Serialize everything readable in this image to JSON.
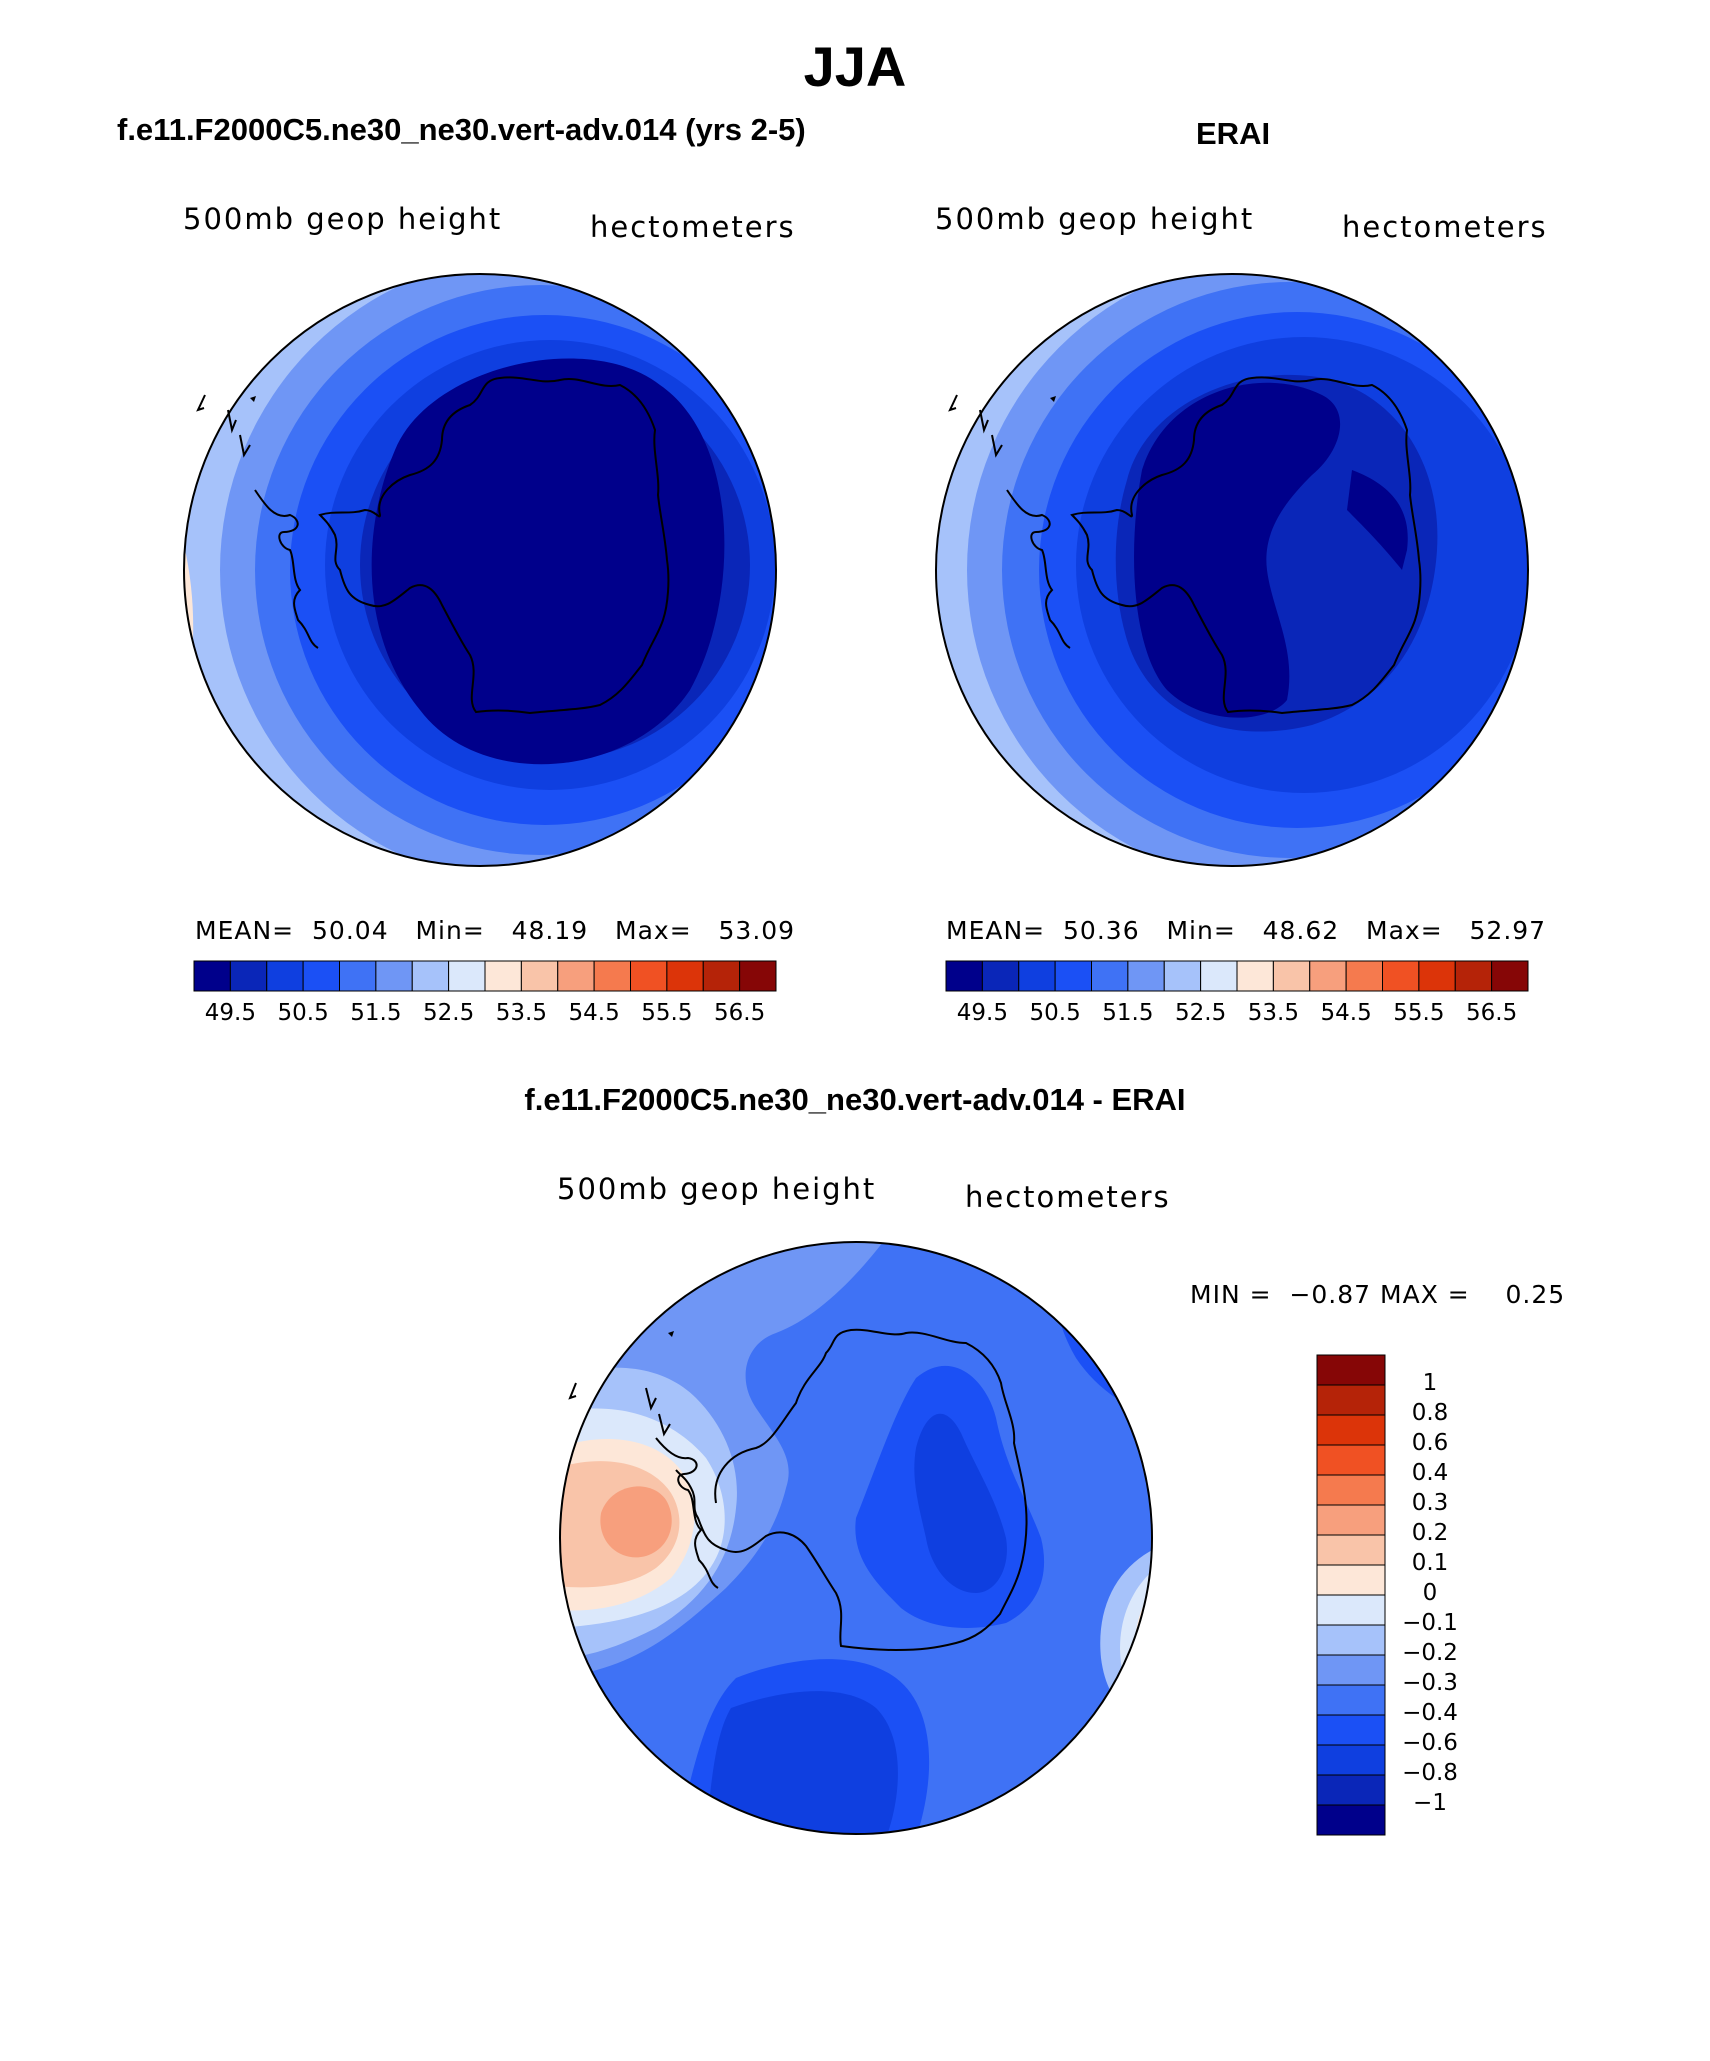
{
  "title": "JJA",
  "panels": [
    {
      "id": "model",
      "title": "f.e11.F2000C5.ne30_ne30.vert-adv.014 (yrs 2-5)",
      "left_label": "500mb  geop  height",
      "right_label": "hectometers",
      "stats": {
        "mean_label": "MEAN=",
        "mean": "50.04",
        "min_label": "Min=",
        "min": "48.19",
        "max_label": "Max=",
        "max": "53.09"
      }
    },
    {
      "id": "obs",
      "title": "ERAI",
      "left_label": "500mb  geop  height",
      "right_label": "hectometers",
      "stats": {
        "mean_label": "MEAN=",
        "mean": "50.36",
        "min_label": "Min=",
        "min": "48.62",
        "max_label": "Max=",
        "max": "52.97"
      }
    }
  ],
  "colorbar": {
    "colors": [
      "#00008b",
      "#0a26b8",
      "#0f3fe0",
      "#1b50f5",
      "#3f72f5",
      "#6f96f5",
      "#a6c2fa",
      "#dbe8fb",
      "#fde7d8",
      "#f9c4a9",
      "#f79f7d",
      "#f57a4e",
      "#f05123",
      "#dc3409",
      "#b52308",
      "#860606"
    ],
    "tick_labels": [
      "49.5",
      "50.5",
      "51.5",
      "52.5",
      "53.5",
      "54.5",
      "55.5",
      "56.5"
    ]
  },
  "diff": {
    "title": "f.e11.F2000C5.ne30_ne30.vert-adv.014 - ERAI",
    "left_label": "500mb  geop  height",
    "right_label": "hectometers",
    "min_label": "MIN =",
    "min": "−0.87",
    "max_label": "MAX =",
    "max": "0.25",
    "colorbar": {
      "colors_top_to_bottom": [
        "#860606",
        "#b52308",
        "#dc3409",
        "#f05123",
        "#f57a4e",
        "#f79f7d",
        "#f9c4a9",
        "#fde7d8",
        "#dbe8fb",
        "#a6c2fa",
        "#6f96f5",
        "#3f72f5",
        "#1b50f5",
        "#0f3fe0",
        "#0a26b8",
        "#00008b"
      ],
      "tick_labels_top_to_bottom": [
        "1",
        "0.8",
        "0.6",
        "0.4",
        "0.3",
        "0.2",
        "0.1",
        "0",
        "−0.1",
        "−0.2",
        "−0.3",
        "−0.4",
        "−0.6",
        "−0.8",
        "−1"
      ]
    }
  }
}
